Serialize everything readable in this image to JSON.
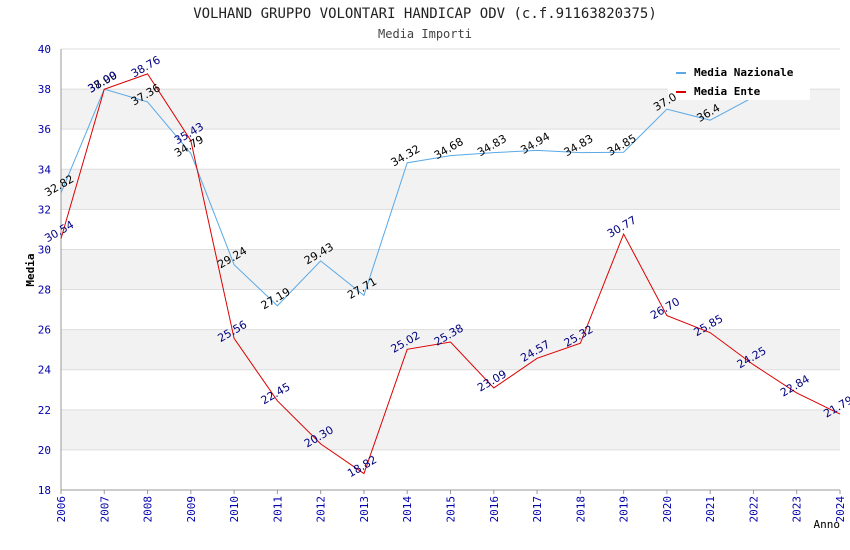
{
  "chart_data": {
    "type": "line",
    "title": "VOLHAND GRUPPO VOLONTARI HANDICAP ODV (c.f.91163820375)",
    "subtitle": "Media Importi",
    "ylabel": "Media",
    "xlabel": "Anno",
    "ylim": [
      18,
      40
    ],
    "yticks": [
      18,
      20,
      22,
      24,
      26,
      28,
      30,
      32,
      34,
      36,
      38,
      40
    ],
    "categories": [
      "2006",
      "2007",
      "2008",
      "2009",
      "2010",
      "2011",
      "2012",
      "2013",
      "2014",
      "2015",
      "2016",
      "2017",
      "2018",
      "2019",
      "2020",
      "2021",
      "2022",
      "2023",
      "2024"
    ],
    "series": [
      {
        "name": "Media Nazionale",
        "color": "#5aa9e6",
        "label_color": "#000000",
        "values": [
          32.82,
          38.0,
          37.36,
          34.79,
          29.24,
          27.19,
          29.43,
          27.71,
          34.32,
          34.68,
          34.83,
          34.94,
          34.83,
          34.85,
          37.0,
          36.45,
          37.6,
          null,
          null
        ],
        "labels": [
          "32.82",
          "38.00",
          "37.36",
          "34.79",
          "29.24",
          "27.19",
          "29.43",
          "27.71",
          "34.32",
          "34.68",
          "34.83",
          "34.94",
          "34.83",
          "34.85",
          "37.0",
          "36.4",
          "",
          "",
          ""
        ]
      },
      {
        "name": "Media Ente",
        "color": "#dd0000",
        "label_color": "#000080",
        "values": [
          30.54,
          37.99,
          38.76,
          35.43,
          25.56,
          22.45,
          20.3,
          18.82,
          25.02,
          25.38,
          23.09,
          24.57,
          25.32,
          30.77,
          26.7,
          25.85,
          24.25,
          22.84,
          21.79
        ],
        "labels": [
          "30.54",
          "37.99",
          "38.76",
          "35.43",
          "25.56",
          "22.45",
          "20.30",
          "18.82",
          "25.02",
          "25.38",
          "23.09",
          "24.57",
          "25.32",
          "30.77",
          "26.70",
          "25.85",
          "24.25",
          "22.84",
          "21.79"
        ]
      }
    ],
    "legend": "top-right",
    "grid": true,
    "colors": {
      "band": "#f2f2f2",
      "axis": "#999999",
      "tick_label": "#0000aa"
    }
  }
}
